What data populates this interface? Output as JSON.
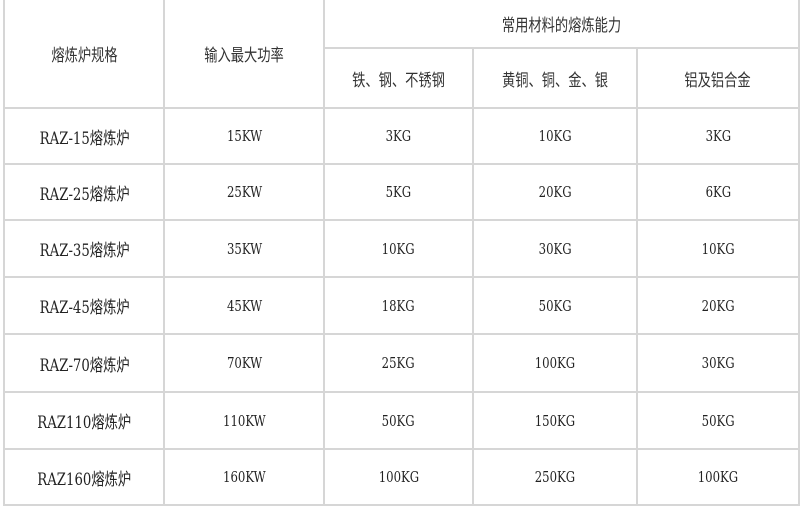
{
  "table": {
    "headers": {
      "spec": "熔炼炉规格",
      "power": "输入最大功率",
      "capacity_group": "常用材料的熔炼能力",
      "materials": [
        "铁、钢、不锈钢",
        "黄铜、铜、金、银",
        "铝及铝合金"
      ]
    },
    "rows": [
      {
        "spec": "RAZ-15熔炼炉",
        "power": "15KW",
        "steel": "3KG",
        "copper": "10KG",
        "aluminum": "3KG"
      },
      {
        "spec": "RAZ-25熔炼炉",
        "power": "25KW",
        "steel": "5KG",
        "copper": "20KG",
        "aluminum": "6KG"
      },
      {
        "spec": "RAZ-35熔炼炉",
        "power": "35KW",
        "steel": "10KG",
        "copper": "30KG",
        "aluminum": "10KG"
      },
      {
        "spec": "RAZ-45熔炼炉",
        "power": "45KW",
        "steel": "18KG",
        "copper": "50KG",
        "aluminum": "20KG"
      },
      {
        "spec": "RAZ-70熔炼炉",
        "power": "70KW",
        "steel": "25KG",
        "copper": "100KG",
        "aluminum": "30KG"
      },
      {
        "spec": "RAZ110熔炼炉",
        "power": "110KW",
        "steel": "50KG",
        "copper": "150KG",
        "aluminum": "50KG"
      },
      {
        "spec": "RAZ160熔炼炉",
        "power": "160KW",
        "steel": "100KG",
        "copper": "250KG",
        "aluminum": "100KG"
      }
    ]
  }
}
